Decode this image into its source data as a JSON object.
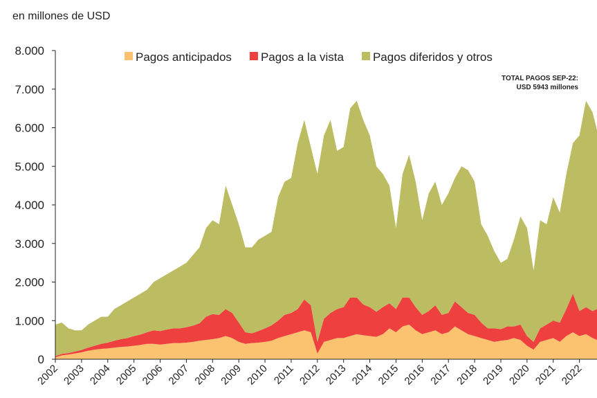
{
  "chart_data": {
    "type": "stacked_area",
    "subtitle": "en millones de USD",
    "annotation": [
      "TOTAL PAGOS SEP-22:",
      "USD 5943 millones"
    ],
    "x": [
      2002,
      2002.25,
      2002.5,
      2002.75,
      2003,
      2003.25,
      2003.5,
      2003.75,
      2004,
      2004.25,
      2004.5,
      2004.75,
      2005,
      2005.25,
      2005.5,
      2005.75,
      2006,
      2006.25,
      2006.5,
      2006.75,
      2007,
      2007.25,
      2007.5,
      2007.75,
      2008,
      2008.25,
      2008.5,
      2008.75,
      2009,
      2009.25,
      2009.5,
      2009.75,
      2010,
      2010.25,
      2010.5,
      2010.75,
      2011,
      2011.25,
      2011.5,
      2011.75,
      2012,
      2012.25,
      2012.5,
      2012.75,
      2013,
      2013.25,
      2013.5,
      2013.75,
      2014,
      2014.25,
      2014.5,
      2014.75,
      2015,
      2015.25,
      2015.5,
      2015.75,
      2016,
      2016.25,
      2016.5,
      2016.75,
      2017,
      2017.25,
      2017.5,
      2017.75,
      2018,
      2018.25,
      2018.5,
      2018.75,
      2019,
      2019.25,
      2019.5,
      2019.75,
      2020,
      2020.25,
      2020.5,
      2020.75,
      2021,
      2021.25,
      2021.5,
      2021.75,
      2022,
      2022.25,
      2022.5,
      2022.67
    ],
    "series": [
      {
        "name": "Pagos anticipados",
        "color": "#fbc26f",
        "values": [
          50,
          100,
          120,
          150,
          180,
          220,
          250,
          270,
          280,
          300,
          320,
          330,
          350,
          370,
          400,
          400,
          380,
          400,
          420,
          420,
          430,
          450,
          480,
          500,
          520,
          550,
          600,
          550,
          450,
          400,
          420,
          430,
          450,
          480,
          550,
          600,
          650,
          700,
          750,
          700,
          150,
          450,
          500,
          550,
          550,
          600,
          650,
          620,
          600,
          580,
          650,
          800,
          700,
          850,
          900,
          750,
          650,
          700,
          750,
          650,
          700,
          850,
          750,
          650,
          600,
          550,
          500,
          450,
          480,
          500,
          550,
          500,
          350,
          250,
          450,
          500,
          550,
          450,
          600,
          700,
          600,
          650,
          550,
          500
        ]
      },
      {
        "name": "Pagos a la vista",
        "color": "#ef4040",
        "values": [
          30,
          40,
          40,
          50,
          60,
          80,
          100,
          130,
          150,
          180,
          200,
          220,
          250,
          270,
          300,
          350,
          350,
          370,
          380,
          380,
          400,
          420,
          450,
          600,
          650,
          600,
          700,
          650,
          500,
          300,
          250,
          300,
          350,
          400,
          450,
          550,
          550,
          600,
          800,
          700,
          300,
          600,
          700,
          750,
          800,
          1000,
          950,
          800,
          750,
          650,
          700,
          650,
          600,
          750,
          700,
          600,
          500,
          550,
          650,
          500,
          500,
          650,
          600,
          550,
          550,
          400,
          300,
          350,
          300,
          350,
          300,
          400,
          250,
          200,
          350,
          400,
          450,
          500,
          700,
          1000,
          650,
          700,
          700,
          800
        ]
      },
      {
        "name": "Pagos diferidos y otros",
        "color": "#bcbd62",
        "values": [
          820,
          810,
          640,
          550,
          510,
          600,
          650,
          700,
          670,
          820,
          880,
          950,
          1000,
          1060,
          1100,
          1250,
          1370,
          1430,
          1500,
          1600,
          1670,
          1830,
          1970,
          2300,
          2430,
          2350,
          3200,
          2800,
          2550,
          2200,
          2230,
          2370,
          2400,
          2420,
          3200,
          3450,
          3500,
          4300,
          4650,
          4100,
          4350,
          4750,
          5000,
          4100,
          4150,
          4900,
          5100,
          4780,
          4450,
          3770,
          3450,
          3050,
          2100,
          3200,
          3700,
          3250,
          2450,
          3050,
          3200,
          2850,
          3100,
          3200,
          3650,
          3700,
          3450,
          2550,
          2400,
          2000,
          1720,
          1750,
          2250,
          2800,
          2800,
          1850,
          2800,
          2600,
          3200,
          2850,
          3500,
          3900,
          4550,
          5350,
          5150,
          4643
        ]
      }
    ],
    "xlim": [
      2002,
      2022.67
    ],
    "xticks": [
      2002,
      2003,
      2004,
      2005,
      2006,
      2007,
      2008,
      2009,
      2010,
      2011,
      2012,
      2013,
      2014,
      2015,
      2016,
      2017,
      2018,
      2019,
      2020,
      2021,
      2022
    ],
    "ylim": [
      0,
      8000
    ],
    "yticks": [
      0,
      {
        "value": 1000,
        "label": "1.000"
      },
      {
        "value": 2000,
        "label": "2.000"
      },
      {
        "value": 3000,
        "label": "3.000"
      },
      {
        "value": 4000,
        "label": "4.000"
      },
      {
        "value": 5000,
        "label": "5.000"
      },
      {
        "value": 6000,
        "label": "6.000"
      },
      {
        "value": 7000,
        "label": "7.000"
      },
      {
        "value": 8000,
        "label": "8.000"
      }
    ],
    "legend": "top"
  }
}
